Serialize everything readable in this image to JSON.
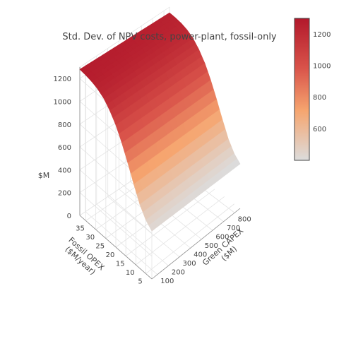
{
  "chart_data": {
    "type": "surface",
    "title": "Std. Dev. of NPV costs, power-plant, fossil-only",
    "x_axis": {
      "label_line1": "Green CAPEX",
      "label_line2": "($M)",
      "ticks": [
        100,
        200,
        300,
        400,
        500,
        600,
        700,
        800
      ],
      "range": [
        50,
        850
      ]
    },
    "y_axis": {
      "label_line1": "Fossil OPEX",
      "label_line2": "($M/year)",
      "ticks": [
        5,
        10,
        15,
        20,
        25,
        30,
        35
      ],
      "range": [
        2,
        38
      ]
    },
    "z_axis": {
      "label": "$M",
      "ticks": [
        0,
        200,
        400,
        600,
        800,
        1000,
        1200
      ],
      "range": [
        0,
        1300
      ]
    },
    "colorscale": {
      "min": 400,
      "max": 1300,
      "ticks": [
        600,
        800,
        1000,
        1200
      ],
      "stops": [
        [
          0,
          "#dcdcdc"
        ],
        [
          0.35,
          "#f6a56f"
        ],
        [
          0.65,
          "#d9534a"
        ],
        [
          1,
          "#b2182b"
        ]
      ]
    },
    "surface_model": {
      "description_free": true,
      "opex_samples": [
        2,
        5,
        8,
        11,
        14,
        17,
        20,
        23,
        26,
        29,
        32,
        35,
        38
      ],
      "z_at_opex": [
        420,
        470,
        560,
        690,
        830,
        960,
        1070,
        1150,
        1210,
        1245,
        1265,
        1275,
        1280
      ],
      "capex_effect": 30
    }
  }
}
